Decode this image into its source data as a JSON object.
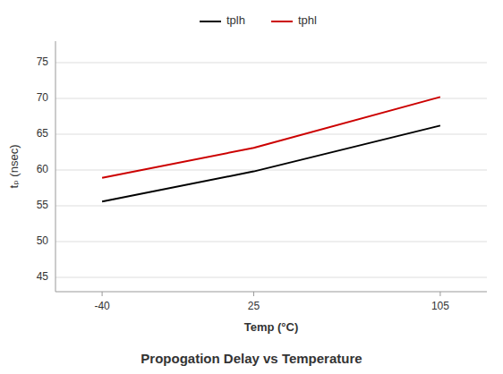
{
  "chart_data": {
    "type": "line",
    "title": "Propogation Delay vs Temperature",
    "xlabel": "Temp (°C)",
    "ylabel": "tₚ (nsec)",
    "x": [
      -40,
      25,
      105
    ],
    "series": [
      {
        "name": "tplh",
        "color": "#000000",
        "values": [
          55.6,
          59.8,
          66.2
        ]
      },
      {
        "name": "tphl",
        "color": "#cc0000",
        "values": [
          58.9,
          63.1,
          70.2
        ]
      }
    ],
    "xlim": [
      -60,
      125
    ],
    "ylim": [
      43,
      78
    ],
    "xticks": [
      -40,
      25,
      105
    ],
    "yticks": [
      45,
      50,
      55,
      60,
      65,
      70,
      75
    ],
    "grid": true,
    "legend": "top"
  }
}
